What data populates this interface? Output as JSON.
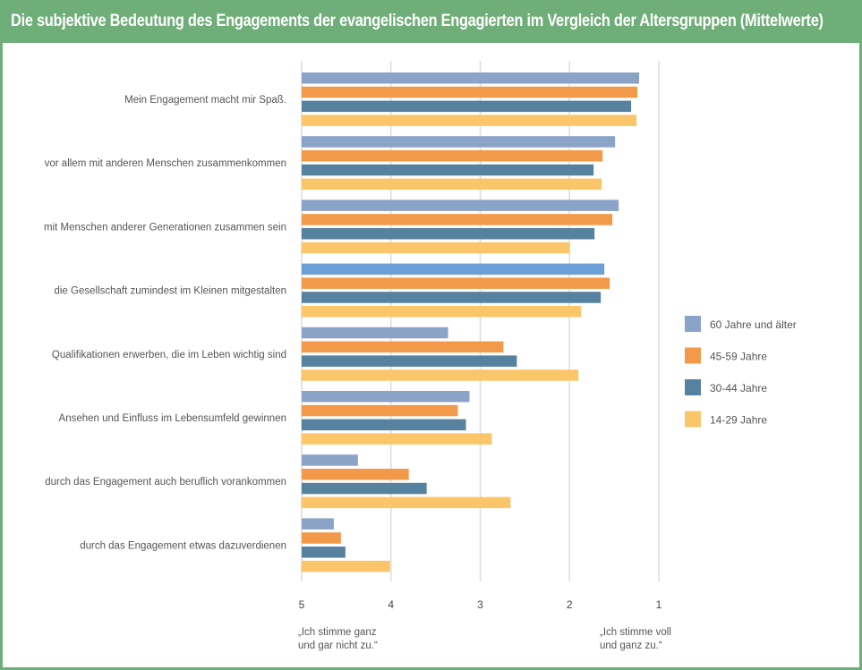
{
  "chart_data": {
    "type": "bar",
    "orientation": "horizontal",
    "title": "Die subjektive Bedeutung des Engagements der evangelischen Engagierten im Vergleich der Altersgruppen (Mittelwerte)",
    "xlim": [
      5,
      1
    ],
    "x_reversed": true,
    "ticks": [
      5,
      4,
      3,
      2,
      1
    ],
    "grid": "vertical",
    "legend_position": "right",
    "scale_notes": {
      "left": [
        "„Ich stimme ganz",
        "und gar nicht zu.“"
      ],
      "right": [
        "„Ich stimme voll",
        "und ganz zu.“"
      ]
    },
    "categories": [
      "Mein Engagement macht mir Spaß.",
      "vor allem mit anderen Menschen zusammenkommen",
      "mit Menschen anderer Generationen zusammen sein",
      "die Gesellschaft zumindest im Kleinen mitgestalten",
      "Qualifikationen erwerben, die im Leben wichtig sind",
      "Ansehen und Einfluss im Lebensumfeld gewinnen",
      "durch das Engagement auch beruflich vorankommen",
      "durch das Engagement etwas dazuverdienen"
    ],
    "series": [
      {
        "name": "60 Jahre und älter",
        "color": "#8aa3c6",
        "values": [
          1.22,
          1.49,
          1.45,
          1.61,
          3.36,
          3.12,
          4.37,
          4.64
        ]
      },
      {
        "name": "45-59 Jahre",
        "color": "#f2994a",
        "values": [
          1.24,
          1.63,
          1.52,
          1.55,
          2.74,
          3.25,
          3.8,
          4.56
        ]
      },
      {
        "name": "30-44 Jahre",
        "color": "#56829f",
        "values": [
          1.31,
          1.73,
          1.72,
          1.65,
          2.59,
          3.16,
          3.6,
          4.51
        ]
      },
      {
        "name": "14-29 Jahre",
        "color": "#fbc66a",
        "values": [
          1.25,
          1.64,
          2.0,
          1.87,
          1.9,
          2.87,
          2.66,
          4.01
        ]
      }
    ],
    "highlight_color": "#6a9fd8"
  }
}
